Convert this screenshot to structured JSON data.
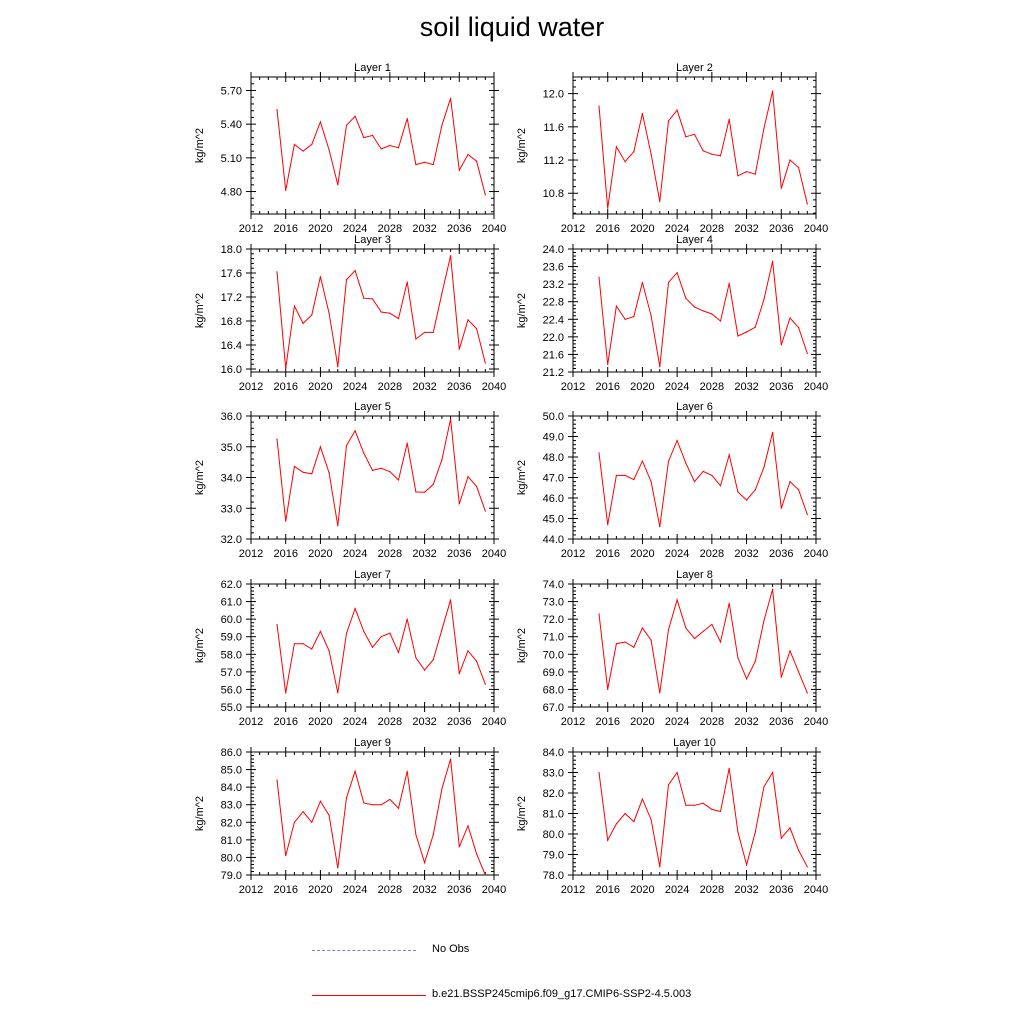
{
  "title": "soil liquid water",
  "colors": {
    "model_line": "#ff0000",
    "obs_line": "#7b7bd6",
    "axis": "#000000"
  },
  "legend": {
    "obs_label": "No Obs",
    "model_label": "b.e21.BSSP245cmip6.f09_g17.CMIP6-SSP2-4.5.003"
  },
  "chart_data": [
    {
      "type": "line",
      "title": "Layer 1",
      "ylabel": "kg/m^2",
      "xlim": [
        2012,
        2040
      ],
      "xticks": [
        2012,
        2016,
        2020,
        2024,
        2028,
        2032,
        2036,
        2040
      ],
      "ylim": [
        4.6,
        5.82
      ],
      "yticks": [
        4.8,
        5.1,
        5.4,
        5.7
      ],
      "ytick_decimals": 2,
      "x": [
        2015,
        2016,
        2017,
        2018,
        2019,
        2020,
        2021,
        2022,
        2023,
        2024,
        2025,
        2026,
        2027,
        2028,
        2029,
        2030,
        2031,
        2032,
        2033,
        2034,
        2035,
        2036,
        2037,
        2038,
        2039
      ],
      "values": [
        5.53,
        4.81,
        5.22,
        5.16,
        5.22,
        5.42,
        5.17,
        4.86,
        5.39,
        5.47,
        5.28,
        5.3,
        5.18,
        5.21,
        5.19,
        5.45,
        5.04,
        5.06,
        5.04,
        5.39,
        5.63,
        4.99,
        5.13,
        5.07,
        4.77
      ]
    },
    {
      "type": "line",
      "title": "Layer 2",
      "ylabel": "kg/m^2",
      "xlim": [
        2012,
        2040
      ],
      "xticks": [
        2012,
        2016,
        2020,
        2024,
        2028,
        2032,
        2036,
        2040
      ],
      "ylim": [
        10.55,
        12.2
      ],
      "yticks": [
        10.8,
        11.2,
        11.6,
        12.0
      ],
      "ytick_decimals": 1,
      "x": [
        2015,
        2016,
        2017,
        2018,
        2019,
        2020,
        2021,
        2022,
        2023,
        2024,
        2025,
        2026,
        2027,
        2028,
        2029,
        2030,
        2031,
        2032,
        2033,
        2034,
        2035,
        2036,
        2037,
        2038,
        2039
      ],
      "values": [
        11.85,
        10.62,
        11.36,
        11.18,
        11.3,
        11.76,
        11.27,
        10.7,
        11.67,
        11.8,
        11.48,
        11.51,
        11.31,
        11.27,
        11.25,
        11.69,
        11.01,
        11.06,
        11.03,
        11.58,
        12.03,
        10.86,
        11.2,
        11.11,
        10.67
      ]
    },
    {
      "type": "line",
      "title": "Layer 3",
      "ylabel": "kg/m^2",
      "xlim": [
        2012,
        2040
      ],
      "xticks": [
        2012,
        2016,
        2020,
        2024,
        2028,
        2032,
        2036,
        2040
      ],
      "ylim": [
        15.95,
        18.0
      ],
      "yticks": [
        16.0,
        16.4,
        16.8,
        17.2,
        17.6,
        18.0
      ],
      "ytick_decimals": 1,
      "x": [
        2015,
        2016,
        2017,
        2018,
        2019,
        2020,
        2021,
        2022,
        2023,
        2024,
        2025,
        2026,
        2027,
        2028,
        2029,
        2030,
        2031,
        2032,
        2033,
        2034,
        2035,
        2036,
        2037,
        2038,
        2039
      ],
      "values": [
        17.62,
        16.01,
        17.05,
        16.76,
        16.9,
        17.54,
        16.93,
        16.04,
        17.49,
        17.64,
        17.18,
        17.17,
        16.95,
        16.93,
        16.84,
        17.45,
        16.5,
        16.61,
        16.61,
        17.26,
        17.89,
        16.33,
        16.82,
        16.67,
        16.1
      ]
    },
    {
      "type": "line",
      "title": "Layer 4",
      "ylabel": "kg/m^2",
      "xlim": [
        2012,
        2040
      ],
      "xticks": [
        2012,
        2016,
        2020,
        2024,
        2028,
        2032,
        2036,
        2040
      ],
      "ylim": [
        21.2,
        24.0
      ],
      "yticks": [
        21.2,
        21.6,
        22.0,
        22.4,
        22.8,
        23.2,
        23.6,
        24.0
      ],
      "ytick_decimals": 1,
      "x": [
        2015,
        2016,
        2017,
        2018,
        2019,
        2020,
        2021,
        2022,
        2023,
        2024,
        2025,
        2026,
        2027,
        2028,
        2029,
        2030,
        2031,
        2032,
        2033,
        2034,
        2035,
        2036,
        2037,
        2038,
        2039
      ],
      "values": [
        23.36,
        21.37,
        22.7,
        22.4,
        22.46,
        23.24,
        22.48,
        21.32,
        23.24,
        23.46,
        22.88,
        22.68,
        22.59,
        22.52,
        22.36,
        23.22,
        22.02,
        22.11,
        22.22,
        22.85,
        23.72,
        21.82,
        22.43,
        22.21,
        21.62
      ]
    },
    {
      "type": "line",
      "title": "Layer 5",
      "ylabel": "kg/m^2",
      "xlim": [
        2012,
        2040
      ],
      "xticks": [
        2012,
        2016,
        2020,
        2024,
        2028,
        2032,
        2036,
        2040
      ],
      "ylim": [
        32.0,
        36.0
      ],
      "yticks": [
        32.0,
        33.0,
        34.0,
        35.0,
        36.0
      ],
      "ytick_decimals": 1,
      "x": [
        2015,
        2016,
        2017,
        2018,
        2019,
        2020,
        2021,
        2022,
        2023,
        2024,
        2025,
        2026,
        2027,
        2028,
        2029,
        2030,
        2031,
        2032,
        2033,
        2034,
        2035,
        2036,
        2037,
        2038,
        2039
      ],
      "values": [
        35.25,
        32.58,
        34.36,
        34.17,
        34.12,
        35.0,
        34.15,
        32.43,
        35.04,
        35.52,
        34.79,
        34.23,
        34.3,
        34.19,
        33.92,
        35.12,
        33.53,
        33.52,
        33.78,
        34.58,
        35.9,
        33.14,
        34.03,
        33.71,
        32.91
      ]
    },
    {
      "type": "line",
      "title": "Layer 6",
      "ylabel": "kg/m^2",
      "xlim": [
        2012,
        2040
      ],
      "xticks": [
        2012,
        2016,
        2020,
        2024,
        2028,
        2032,
        2036,
        2040
      ],
      "ylim": [
        44.0,
        50.0
      ],
      "yticks": [
        44.0,
        45.0,
        46.0,
        47.0,
        48.0,
        49.0,
        50.0
      ],
      "ytick_decimals": 1,
      "x": [
        2015,
        2016,
        2017,
        2018,
        2019,
        2020,
        2021,
        2022,
        2023,
        2024,
        2025,
        2026,
        2027,
        2028,
        2029,
        2030,
        2031,
        2032,
        2033,
        2034,
        2035,
        2036,
        2037,
        2038,
        2039
      ],
      "values": [
        48.2,
        44.7,
        47.1,
        47.1,
        46.9,
        47.8,
        46.8,
        44.6,
        47.8,
        48.8,
        47.7,
        46.8,
        47.3,
        47.1,
        46.6,
        48.1,
        46.3,
        45.9,
        46.4,
        47.5,
        49.2,
        45.5,
        46.8,
        46.4,
        45.2
      ]
    },
    {
      "type": "line",
      "title": "Layer 7",
      "ylabel": "kg/m^2",
      "xlim": [
        2012,
        2040
      ],
      "xticks": [
        2012,
        2016,
        2020,
        2024,
        2028,
        2032,
        2036,
        2040
      ],
      "ylim": [
        55.0,
        62.0
      ],
      "yticks": [
        55.0,
        56.0,
        57.0,
        58.0,
        59.0,
        60.0,
        61.0,
        62.0
      ],
      "ytick_decimals": 1,
      "x": [
        2015,
        2016,
        2017,
        2018,
        2019,
        2020,
        2021,
        2022,
        2023,
        2024,
        2025,
        2026,
        2027,
        2028,
        2029,
        2030,
        2031,
        2032,
        2033,
        2034,
        2035,
        2036,
        2037,
        2038,
        2039
      ],
      "values": [
        59.7,
        55.8,
        58.6,
        58.6,
        58.3,
        59.3,
        58.2,
        55.8,
        59.2,
        60.6,
        59.3,
        58.4,
        59.0,
        59.2,
        58.1,
        60.0,
        57.8,
        57.1,
        57.7,
        59.4,
        61.1,
        56.9,
        58.2,
        57.6,
        56.3
      ]
    },
    {
      "type": "line",
      "title": "Layer 8",
      "ylabel": "kg/m^2",
      "xlim": [
        2012,
        2040
      ],
      "xticks": [
        2012,
        2016,
        2020,
        2024,
        2028,
        2032,
        2036,
        2040
      ],
      "ylim": [
        67.0,
        74.0
      ],
      "yticks": [
        67.0,
        68.0,
        69.0,
        70.0,
        71.0,
        72.0,
        73.0,
        74.0
      ],
      "ytick_decimals": 1,
      "x": [
        2015,
        2016,
        2017,
        2018,
        2019,
        2020,
        2021,
        2022,
        2023,
        2024,
        2025,
        2026,
        2027,
        2028,
        2029,
        2030,
        2031,
        2032,
        2033,
        2034,
        2035,
        2036,
        2037,
        2038,
        2039
      ],
      "values": [
        72.3,
        68.0,
        70.6,
        70.7,
        70.4,
        71.5,
        70.8,
        67.8,
        71.4,
        73.1,
        71.5,
        70.9,
        71.3,
        71.7,
        70.7,
        72.9,
        69.8,
        68.6,
        69.6,
        71.9,
        73.7,
        68.7,
        70.2,
        69.0,
        67.8
      ]
    },
    {
      "type": "line",
      "title": "Layer 9",
      "ylabel": "kg/m^2",
      "xlim": [
        2012,
        2040
      ],
      "xticks": [
        2012,
        2016,
        2020,
        2024,
        2028,
        2032,
        2036,
        2040
      ],
      "ylim": [
        79.0,
        86.0
      ],
      "yticks": [
        79.0,
        80.0,
        81.0,
        82.0,
        83.0,
        84.0,
        85.0,
        86.0
      ],
      "ytick_decimals": 1,
      "x": [
        2015,
        2016,
        2017,
        2018,
        2019,
        2020,
        2021,
        2022,
        2023,
        2024,
        2025,
        2026,
        2027,
        2028,
        2029,
        2030,
        2031,
        2032,
        2033,
        2034,
        2035,
        2036,
        2037,
        2038,
        2039
      ],
      "values": [
        84.4,
        80.1,
        82.0,
        82.6,
        82.0,
        83.2,
        82.4,
        79.4,
        83.4,
        84.9,
        83.1,
        83.0,
        83.0,
        83.3,
        82.8,
        84.9,
        81.3,
        79.7,
        81.3,
        83.9,
        85.6,
        80.6,
        81.8,
        80.2,
        79.0
      ]
    },
    {
      "type": "line",
      "title": "Layer 10",
      "ylabel": "kg/m^2",
      "xlim": [
        2012,
        2040
      ],
      "xticks": [
        2012,
        2016,
        2020,
        2024,
        2028,
        2032,
        2036,
        2040
      ],
      "ylim": [
        78.0,
        84.0
      ],
      "yticks": [
        78.0,
        79.0,
        80.0,
        81.0,
        82.0,
        83.0,
        84.0
      ],
      "ytick_decimals": 1,
      "x": [
        2015,
        2016,
        2017,
        2018,
        2019,
        2020,
        2021,
        2022,
        2023,
        2024,
        2025,
        2026,
        2027,
        2028,
        2029,
        2030,
        2031,
        2032,
        2033,
        2034,
        2035,
        2036,
        2037,
        2038,
        2039
      ],
      "values": [
        83.0,
        79.7,
        80.5,
        81.0,
        80.6,
        81.7,
        80.7,
        78.4,
        82.4,
        83.0,
        81.4,
        81.4,
        81.5,
        81.2,
        81.1,
        83.2,
        80.1,
        78.5,
        80.1,
        82.3,
        83.0,
        79.8,
        80.3,
        79.2,
        78.4
      ]
    }
  ]
}
